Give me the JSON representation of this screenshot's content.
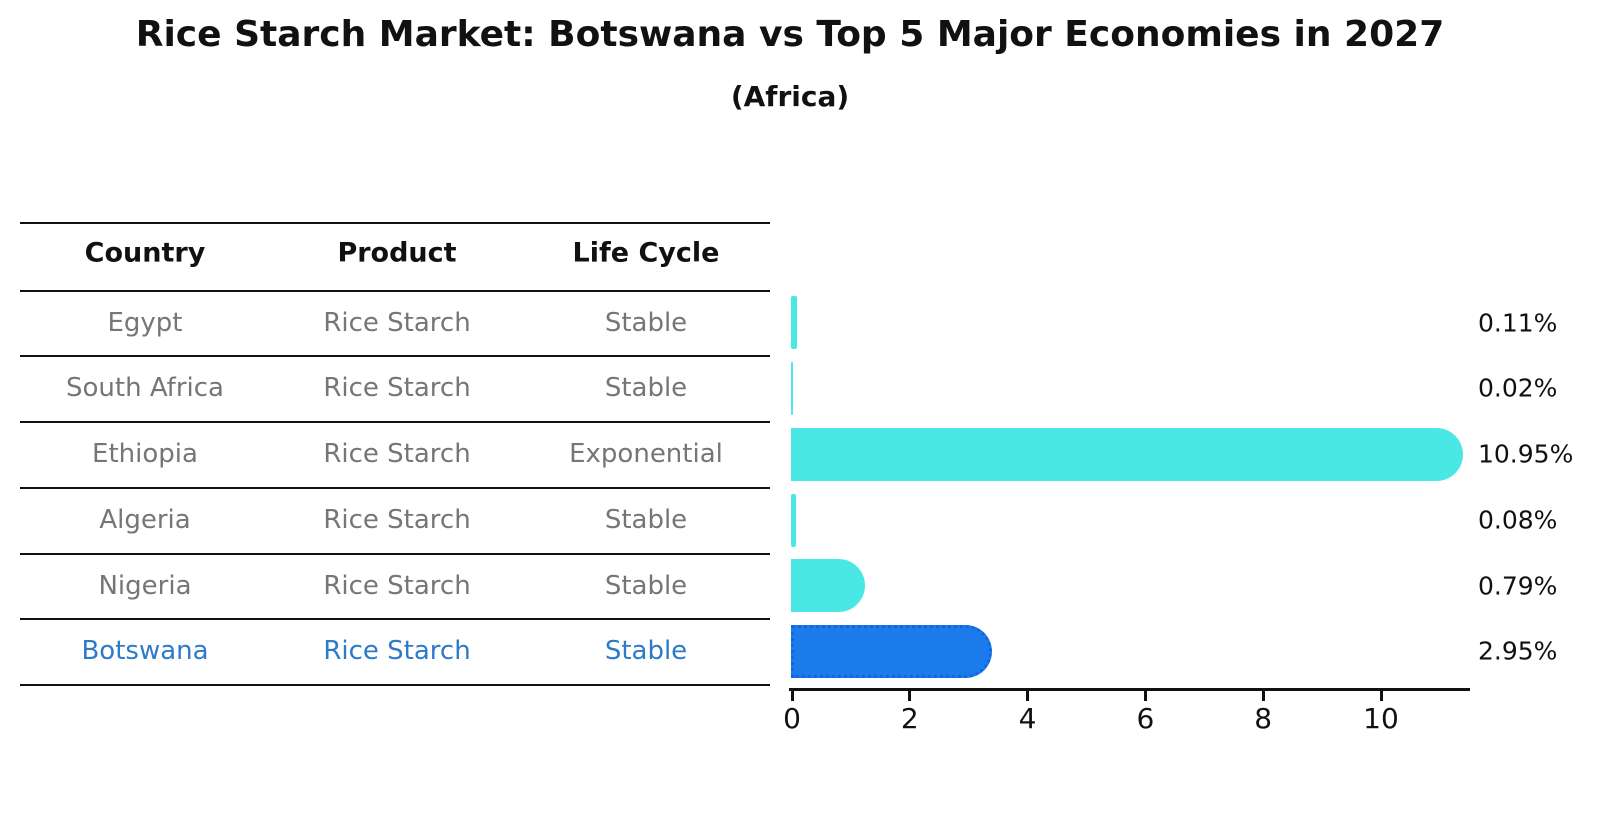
{
  "title": "Rice Starch Market: Botswana vs Top 5 Major Economies in 2027",
  "subtitle": "(Africa)",
  "table": {
    "headers": [
      "Country",
      "Product",
      "Life Cycle"
    ],
    "rows": [
      {
        "country": "Egypt",
        "product": "Rice Starch",
        "life_cycle": "Stable",
        "highlight": false
      },
      {
        "country": "South Africa",
        "product": "Rice Starch",
        "life_cycle": "Stable",
        "highlight": false
      },
      {
        "country": "Ethiopia",
        "product": "Rice Starch",
        "life_cycle": "Exponential",
        "highlight": false
      },
      {
        "country": "Algeria",
        "product": "Rice Starch",
        "life_cycle": "Stable",
        "highlight": false
      },
      {
        "country": "Nigeria",
        "product": "Rice Starch",
        "life_cycle": "Stable",
        "highlight": false
      },
      {
        "country": "Botswana",
        "product": "Rice Starch",
        "life_cycle": "Stable",
        "highlight": true
      }
    ]
  },
  "chart_data": {
    "type": "bar",
    "orientation": "horizontal",
    "title": "Rice Starch Market: Botswana vs Top 5 Major Economies in 2027",
    "subtitle": "(Africa)",
    "categories": [
      "Egypt",
      "South Africa",
      "Ethiopia",
      "Algeria",
      "Nigeria",
      "Botswana"
    ],
    "values": [
      0.11,
      0.02,
      10.95,
      0.08,
      0.79,
      2.95
    ],
    "value_labels": [
      "0.11%",
      "0.02%",
      "10.95%",
      "0.08%",
      "0.79%",
      "2.95%"
    ],
    "highlight_index": 5,
    "xlabel": "",
    "ylabel": "",
    "xlim": [
      0,
      11.5
    ],
    "x_ticks": [
      0,
      2,
      4,
      6,
      8,
      10
    ],
    "grid": false,
    "legend": "none"
  },
  "colors": {
    "bar": "#4AE8E4",
    "highlight_bar": "#1B7BEA",
    "highlight_bar_border": "#1266DE",
    "highlight_text": "#2C7BC9",
    "table_text": "#767676",
    "axis_and_headers": "#111111",
    "background": "#ffffff"
  }
}
